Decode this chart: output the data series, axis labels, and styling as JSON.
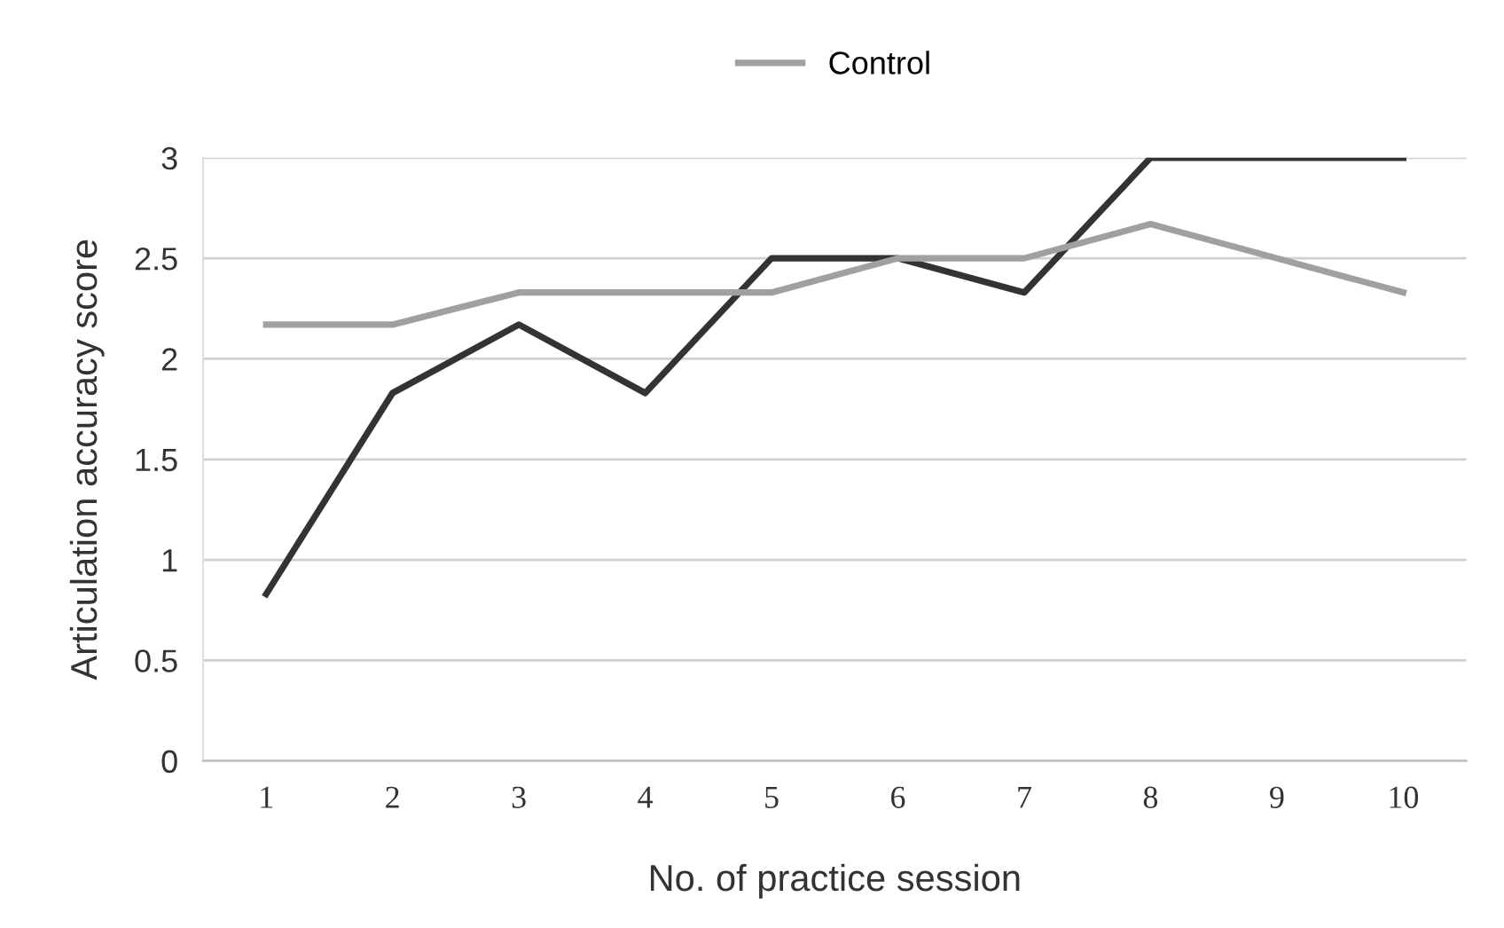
{
  "chart_data": {
    "type": "line",
    "xlabel": "No. of practice session",
    "ylabel": "Articulation accuracy score",
    "categories": [
      "1",
      "2",
      "3",
      "4",
      "5",
      "6",
      "7",
      "8",
      "9",
      "10"
    ],
    "series": [
      {
        "color": "#333333",
        "values": [
          0.83,
          1.83,
          2.17,
          1.83,
          2.5,
          2.5,
          2.33,
          3,
          3,
          3
        ]
      },
      {
        "name": "Control",
        "color": "#a0a0a0",
        "values": [
          2.17,
          2.17,
          2.33,
          2.33,
          2.33,
          2.5,
          2.5,
          2.67,
          2.5,
          2.33
        ]
      }
    ],
    "ylim": [
      0,
      3
    ],
    "yticks": [
      0,
      0.5,
      1,
      1.5,
      2,
      2.5,
      3
    ],
    "grid": "y",
    "legend": "top",
    "marker": "none",
    "line_style": "solid"
  }
}
